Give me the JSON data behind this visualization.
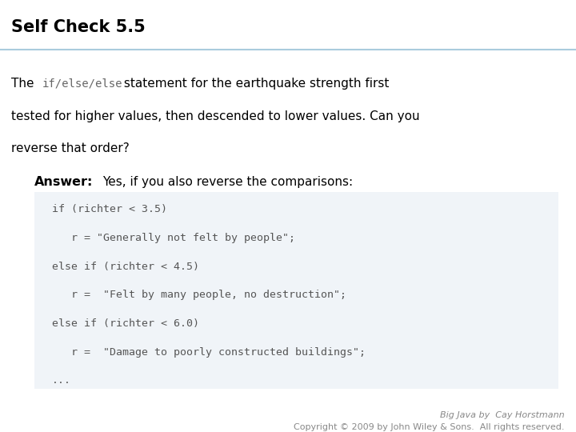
{
  "title": "Self Check 5.5",
  "bg_color": "#ffffff",
  "title_color": "#000000",
  "title_fontsize": 15,
  "separator_color": "#aaccdd",
  "body_line1_pre": "The ",
  "body_line1_mono": "if/else/else",
  "body_line1_post": " statement for the earthquake strength first",
  "body_line2": "tested for higher values, then descended to lower values. Can you",
  "body_line3": "reverse that order?",
  "answer_label": "Answer:",
  "answer_text": "Yes, if you also reverse the comparisons:",
  "code_lines": [
    "if (richter < 3.5)",
    "   r = \"Generally not felt by people\";",
    "else if (richter < 4.5)",
    "   r =  \"Felt by many people, no destruction\";",
    "else if (richter < 6.0)",
    "   r =  \"Damage to poorly constructed buildings\";",
    "..."
  ],
  "code_color": "#555555",
  "code_fontsize": 9.5,
  "code_bg": "#f0f4f8",
  "footer_line1": "Big Java by  Cay Horstmann",
  "footer_line2": "Copyright © 2009 by John Wiley & Sons.  All rights reserved.",
  "footer_color": "#888888",
  "footer_fontsize": 8,
  "body_fontsize": 11,
  "mono_color": "#666666",
  "answer_fontsize": 11.5
}
